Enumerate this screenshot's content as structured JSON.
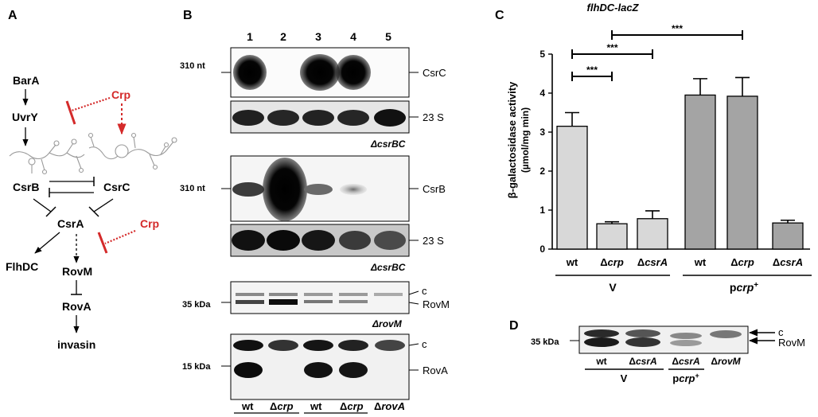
{
  "panels": {
    "A": {
      "letter": "A",
      "nodes": {
        "bara": "BarA",
        "uvry": "UvrY",
        "crp_top": "Crp",
        "csrb": "CsrB",
        "csrc": "CsrC",
        "csra": "CsrA",
        "crp_mid": "Crp",
        "flhdc": "FlhDC",
        "rovm": "RovM",
        "rova": "RovA",
        "invasin": "invasin"
      },
      "colors": {
        "crp": "#d42a2a",
        "lines": "#000000",
        "rna": "#9a9a9a"
      }
    },
    "B": {
      "letter": "B",
      "lane_numbers": [
        "1",
        "2",
        "3",
        "4",
        "5"
      ],
      "blots": {
        "csrc": {
          "size": "310 nt",
          "label": "CsrC"
        },
        "csrc_rrna": {
          "label": "23 S",
          "strain": "ΔcsrBC"
        },
        "csrb": {
          "size": "310 nt",
          "label": "CsrB"
        },
        "csrb_rrna": {
          "label": "23 S",
          "strain": "ΔcsrBC"
        },
        "rovm": {
          "size": "35 kDa",
          "c_label": "c",
          "label": "RovM",
          "strain": "ΔrovM"
        },
        "rova": {
          "size": "15 kDa",
          "c_label": "c",
          "label": "RovA"
        }
      },
      "lanes": {
        "wt1": "wt",
        "crp1_delta": "Δ",
        "crp1": "crp",
        "wt2": "wt",
        "crp2_delta": "Δ",
        "crp2": "crp",
        "rova_delta": "Δ",
        "rova": "rovA"
      },
      "groups": {
        "v": "V",
        "pcrp_p": "p",
        "pcrp": "crp",
        "pcrp_sup": "+"
      }
    },
    "C": {
      "letter": "C",
      "title": "flhDC-lacZ",
      "ylabel_beta": "β",
      "ylabel_rest": "-galactosidase activity",
      "ylabel_unit": "(µmol/mg  min)",
      "significance": [
        "***",
        "***",
        "***"
      ],
      "groups": {
        "v": "V",
        "pcrp_p": "p",
        "pcrp": "crp",
        "pcrp_sup": "+"
      },
      "tick_labels": {
        "wt1": "wt",
        "crp1_delta": "Δ",
        "crp1": "crp",
        "csra1_delta": "Δ",
        "csra1": "csrA",
        "wt2": "wt",
        "crp2_delta": "Δ",
        "crp2": "crp",
        "csra2_delta": "Δ",
        "csra2": "csrA"
      }
    },
    "D": {
      "letter": "D",
      "size": "35 kDa",
      "c_label": "c",
      "label": "RovM",
      "lanes": {
        "wt": "wt",
        "csra1_delta": "Δ",
        "csra1": "csrA",
        "csra2_delta": "Δ",
        "csra2": "csrA",
        "rovm_delta": "Δ",
        "rovm": "rovM"
      },
      "groups": {
        "v": "V",
        "pcrp_p": "p",
        "pcrp": "crp",
        "pcrp_sup": "+"
      }
    }
  },
  "chart_data": {
    "type": "bar",
    "title": "flhDC-lacZ",
    "xlabel": "",
    "ylabel": "β-galactosidase activity (µmol/mg min)",
    "ylim": [
      0,
      5
    ],
    "yticks": [
      0,
      1,
      2,
      3,
      4,
      5
    ],
    "categories": [
      "wt",
      "Δcrp",
      "ΔcsrA",
      "wt",
      "Δcrp",
      "ΔcsrA"
    ],
    "groups": [
      "V",
      "V",
      "V",
      "pcrp+",
      "pcrp+",
      "pcrp+"
    ],
    "values": [
      3.15,
      0.65,
      0.78,
      3.95,
      3.92,
      0.67
    ],
    "errors": [
      0.35,
      0.05,
      0.2,
      0.42,
      0.48,
      0.07
    ],
    "colors": [
      "#d8d8d8",
      "#d8d8d8",
      "#d8d8d8",
      "#a4a4a4",
      "#a4a4a4",
      "#a4a4a4"
    ],
    "significance": [
      {
        "from": 0,
        "to": 1,
        "label": "***"
      },
      {
        "from": 0,
        "to": 2,
        "label": "***"
      },
      {
        "from": 1,
        "to": 4,
        "label": "***"
      }
    ],
    "grid": false,
    "legend": "none"
  }
}
